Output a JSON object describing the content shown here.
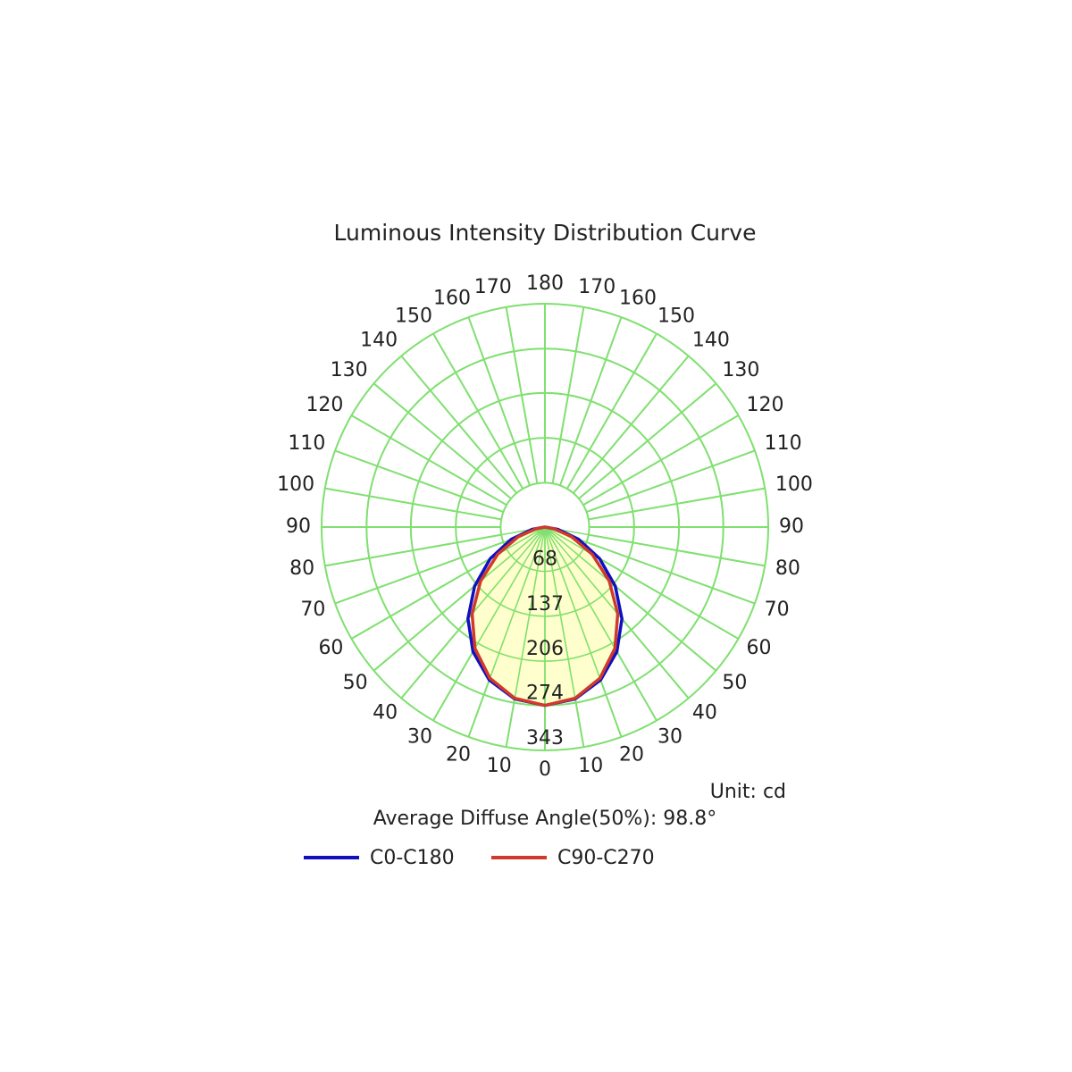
{
  "chart_data": {
    "type": "polar",
    "title": "Luminous Intensity Distribution Curve",
    "unit": "Unit: cd",
    "note": "Average Diffuse Angle(50%): 98.8°",
    "theta": [
      0,
      10,
      20,
      30,
      40,
      50,
      60,
      70,
      80,
      90
    ],
    "series": [
      {
        "name": "C0-C180",
        "color": "#1010c0",
        "values": [
          274,
          268,
          250,
          221,
          184,
          141,
          97,
          55,
          20,
          0
        ]
      },
      {
        "name": "C90-C270",
        "color": "#d03a2a",
        "values": [
          274,
          267,
          247,
          215,
          174,
          129,
          84,
          44,
          14,
          0
        ]
      }
    ],
    "fill_color": "#ffffc0",
    "grid_color": "#80e070",
    "rlim": [
      0,
      343
    ],
    "rticks": [
      68,
      137,
      206,
      274,
      343
    ],
    "thetaticks": [
      0,
      10,
      20,
      30,
      40,
      50,
      60,
      70,
      80,
      90,
      100,
      110,
      120,
      130,
      140,
      150,
      160,
      170,
      180
    ]
  }
}
